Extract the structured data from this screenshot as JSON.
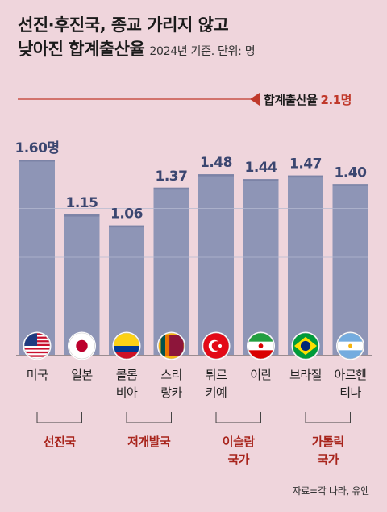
{
  "header": {
    "title_line1": "선진·후진국, 종교 가리지 않고",
    "title_line2": "낮아진 합계출산율",
    "subtitle": "2024년 기준. 단위: 명"
  },
  "chart_data": {
    "type": "bar",
    "categories": [
      "미국",
      "일본",
      "콜롬비아",
      "스리랑카",
      "튀르키예",
      "이란",
      "브라질",
      "아르헨티나"
    ],
    "category_labels": [
      [
        "미국"
      ],
      [
        "일본"
      ],
      [
        "콜롬",
        "비아"
      ],
      [
        "스리",
        "랑카"
      ],
      [
        "튀르",
        "키예"
      ],
      [
        "이란"
      ],
      [
        "브라질"
      ],
      [
        "아르헨",
        "티나"
      ]
    ],
    "values": [
      1.6,
      1.15,
      1.06,
      1.37,
      1.48,
      1.44,
      1.47,
      1.4
    ],
    "value_labels": [
      "1.60명",
      "1.15",
      "1.06",
      "1.37",
      "1.48",
      "1.44",
      "1.47",
      "1.40"
    ],
    "flags": [
      "usa-flag-icon",
      "japan-flag-icon",
      "colombia-flag-icon",
      "sri-lanka-flag-icon",
      "turkey-flag-icon",
      "iran-flag-icon",
      "brazil-flag-icon",
      "argentina-flag-icon"
    ],
    "reference_line": {
      "value": 2.1,
      "label": "합계출산율",
      "value_label": "2.1명"
    },
    "groups": [
      {
        "label": "선진국",
        "start": 0,
        "end": 1
      },
      {
        "label": "저개발국",
        "start": 2,
        "end": 3
      },
      {
        "label": "이슬람\n국가",
        "start": 4,
        "end": 5
      },
      {
        "label": "가톨릭\n국가",
        "start": 6,
        "end": 7
      }
    ],
    "ylim": [
      0,
      1.6
    ],
    "colors": {
      "bar": "#8e95b6",
      "bar_edge": "#7c83a6",
      "value_text": "#3b4670",
      "reference": "#c0392b",
      "group_text": "#a8241c",
      "grid": "#b4bad0"
    }
  },
  "source": "자료=각 나라, 유엔"
}
